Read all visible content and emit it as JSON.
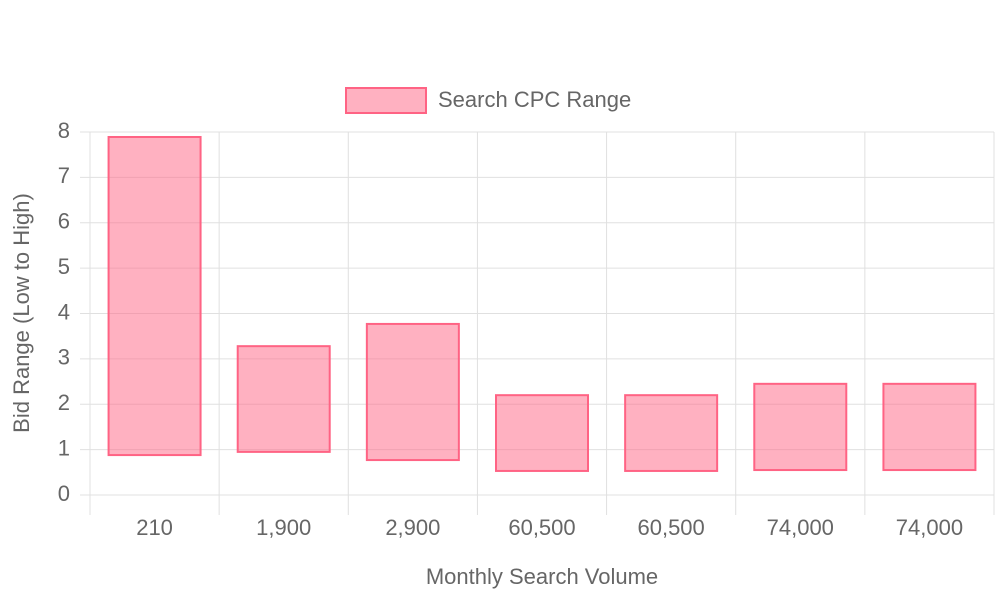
{
  "chart_data": {
    "type": "floating-bar",
    "xlabel": "Monthly Search Volume",
    "ylabel": "Bid Range (Low to High)",
    "categories": [
      "210",
      "1,900",
      "2,900",
      "60,500",
      "60,500",
      "74,000",
      "74,000"
    ],
    "series": [
      {
        "name": "Search CPC Range",
        "color": "#ff6384",
        "low": [
          0.88,
          0.95,
          0.77,
          0.53,
          0.53,
          0.55,
          0.55
        ],
        "high": [
          7.89,
          3.28,
          3.77,
          2.2,
          2.2,
          2.45,
          2.45
        ]
      }
    ],
    "ylim": [
      0,
      8
    ],
    "yticks": [
      0,
      1,
      2,
      3,
      4,
      5,
      6,
      7,
      8
    ],
    "grid": true,
    "legend": "top"
  }
}
